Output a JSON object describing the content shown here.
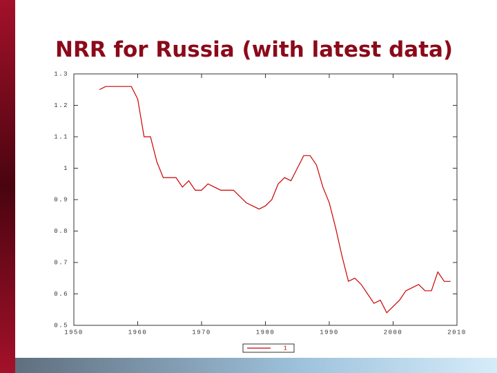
{
  "chart_data": {
    "type": "line",
    "title": "NRR for Russia (with latest data)",
    "x": [
      1954,
      1955,
      1956,
      1957,
      1958,
      1959,
      1960,
      1961,
      1962,
      1963,
      1964,
      1965,
      1966,
      1967,
      1968,
      1969,
      1970,
      1971,
      1972,
      1973,
      1974,
      1975,
      1976,
      1977,
      1978,
      1979,
      1980,
      1981,
      1982,
      1983,
      1984,
      1985,
      1986,
      1987,
      1988,
      1989,
      1990,
      1991,
      1992,
      1993,
      1994,
      1995,
      1996,
      1997,
      1998,
      1999,
      2000,
      2001,
      2002,
      2003,
      2004,
      2005,
      2006,
      2007,
      2008,
      2009
    ],
    "series": [
      {
        "name": "1",
        "color": "#cc0000",
        "values": [
          1.25,
          1.26,
          1.26,
          1.26,
          1.26,
          1.26,
          1.22,
          1.1,
          1.1,
          1.02,
          0.97,
          0.97,
          0.97,
          0.94,
          0.96,
          0.93,
          0.93,
          0.95,
          0.94,
          0.93,
          0.93,
          0.93,
          0.91,
          0.89,
          0.88,
          0.87,
          0.88,
          0.9,
          0.95,
          0.97,
          0.96,
          1.0,
          1.04,
          1.04,
          1.01,
          0.94,
          0.89,
          0.81,
          0.72,
          0.64,
          0.65,
          0.63,
          0.6,
          0.57,
          0.58,
          0.54,
          0.56,
          0.58,
          0.61,
          0.62,
          0.63,
          0.61,
          0.61,
          0.67,
          0.64,
          0.64
        ]
      }
    ],
    "xlim": [
      1950,
      2010
    ],
    "xticks": [
      1950,
      1960,
      1970,
      1980,
      1990,
      2000,
      2010
    ],
    "ylim": [
      0.5,
      1.3
    ],
    "yticks": [
      0.5,
      0.6,
      0.7,
      0.8,
      0.9,
      1,
      1.1,
      1.2,
      1.3
    ],
    "legend": "bottom"
  }
}
